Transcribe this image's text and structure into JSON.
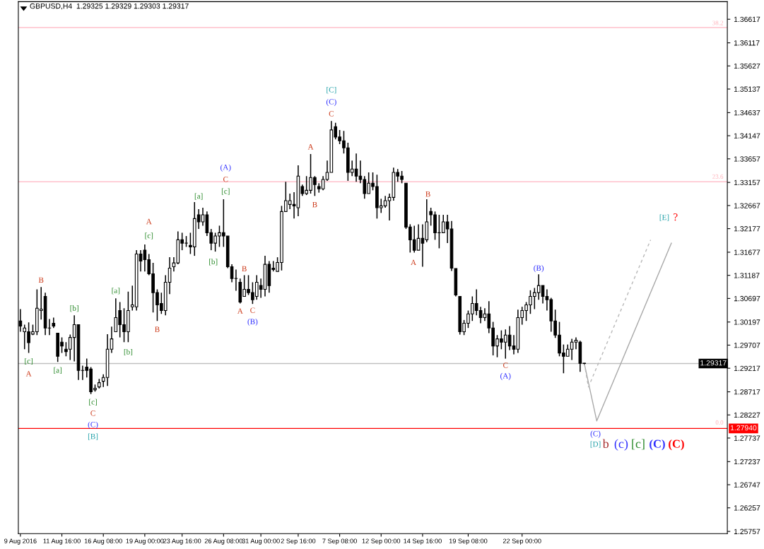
{
  "chart_data": {
    "type": "candlestick",
    "title": "GBPUSD,H4  1.29325 1.29329 1.29303 1.29317",
    "color": "#000000",
    "categories": [
      "9 Aug 2016",
      null,
      null,
      null,
      null,
      null,
      null,
      null,
      null,
      null,
      "11 Aug 16:00",
      null,
      null,
      null,
      null,
      null,
      null,
      null,
      null,
      null,
      "16 Aug 08:00",
      null,
      null,
      null,
      null,
      null,
      null,
      null,
      null,
      null,
      "19 Aug 00:00",
      null,
      null,
      null,
      null,
      null,
      null,
      null,
      null,
      "23 Aug 16:00",
      null,
      null,
      null,
      null,
      null,
      null,
      null,
      null,
      null,
      "26 Aug 08:00",
      null,
      null,
      null,
      null,
      null,
      null,
      null,
      null,
      "31 Aug 00:00",
      null,
      null,
      null,
      null,
      null,
      null,
      null,
      null,
      "2 Sep 16:00",
      null,
      null,
      null,
      null,
      null,
      null,
      null,
      null,
      null,
      "7 Sep 08:00",
      null,
      null,
      null,
      null,
      null,
      null,
      null,
      null,
      null,
      "12 Sep 00:00",
      null,
      null,
      null,
      null,
      null,
      null,
      null,
      null,
      null,
      "14 Sep 16:00",
      null,
      null,
      null,
      null,
      null,
      null,
      null,
      null,
      null,
      null,
      "19 Sep 08:00",
      null,
      null,
      null,
      null,
      null,
      null,
      null,
      null,
      null,
      null,
      null,
      null,
      "22 Sep 00:00",
      null,
      null,
      null,
      null,
      null,
      null,
      null,
      null,
      null,
      null,
      null,
      null,
      null,
      null,
      null,
      null,
      null,
      null,
      null,
      null,
      null,
      null,
      null,
      null,
      null,
      null,
      null,
      null,
      null,
      null,
      null,
      null,
      null,
      null,
      null,
      null,
      null,
      null,
      null,
      null,
      null,
      null,
      null,
      null,
      null,
      null,
      null,
      null,
      null
    ],
    "ohlc": [
      [
        1.3022,
        1.3047,
        1.2999,
        1.3011
      ],
      [
        1.2999,
        1.3014,
        1.2962,
        1.3007
      ],
      [
        1.2999,
        1.3019,
        1.2954,
        1.2976
      ],
      [
        1.2994,
        1.3014,
        1.2992,
        1.2999
      ],
      [
        1.2999,
        1.3089,
        1.2992,
        1.3049
      ],
      [
        1.3044,
        1.3094,
        1.3025,
        1.3047
      ],
      [
        1.3074,
        1.3082,
        1.2992,
        1.3007
      ],
      [
        1.3007,
        1.3026,
        1.2992,
        1.3007
      ],
      [
        1.3017,
        1.3029,
        1.3007,
        1.3011
      ],
      [
        1.2996,
        1.2996,
        1.2935,
        1.2947
      ],
      [
        1.2977,
        1.2987,
        1.2954,
        1.2969
      ],
      [
        1.2962,
        1.2977,
        1.2947,
        1.2957
      ],
      [
        1.2962,
        1.2993,
        1.2939,
        1.2987
      ],
      [
        1.2987,
        1.3034,
        1.2936,
        1.3014
      ],
      [
        1.3014,
        1.3014,
        1.2897,
        1.2917
      ],
      [
        1.2917,
        1.2927,
        1.2897,
        1.2917
      ],
      [
        1.2924,
        1.2942,
        1.2902,
        1.2917
      ],
      [
        1.292,
        1.2924,
        1.2867,
        1.2872
      ],
      [
        1.2876,
        1.2887,
        1.2872,
        1.2879
      ],
      [
        1.2882,
        1.2899,
        1.2879,
        1.2891
      ],
      [
        1.2894,
        1.2909,
        1.2882,
        1.2902
      ],
      [
        1.2902,
        1.2994,
        1.2884,
        1.2962
      ],
      [
        1.2962,
        1.301,
        1.2954,
        1.2984
      ],
      [
        1.2999,
        1.307,
        1.2999,
        1.3029
      ],
      [
        1.3044,
        1.3062,
        1.2987,
        1.3014
      ],
      [
        1.3014,
        1.3049,
        1.2977,
        1.2999
      ],
      [
        1.2999,
        1.3084,
        1.2977,
        1.3044
      ],
      [
        1.3052,
        1.3097,
        1.3044,
        1.3056
      ],
      [
        1.3052,
        1.3172,
        1.3044,
        1.3164
      ],
      [
        1.3164,
        1.3172,
        1.3127,
        1.3149
      ],
      [
        1.3172,
        1.3184,
        1.3127,
        1.3152
      ],
      [
        1.3152,
        1.3164,
        1.3119,
        1.3122
      ],
      [
        1.3122,
        1.3145,
        1.304,
        1.3082
      ],
      [
        1.3082,
        1.3089,
        1.3022,
        1.3056
      ],
      [
        1.3059,
        1.3082,
        1.3037,
        1.3044
      ],
      [
        1.3044,
        1.3119,
        1.3034,
        1.3104
      ],
      [
        1.3104,
        1.3157,
        1.3079,
        1.3134
      ],
      [
        1.3137,
        1.3157,
        1.3127,
        1.3145
      ],
      [
        1.3145,
        1.3212,
        1.3142,
        1.3194
      ],
      [
        1.3194,
        1.3209,
        1.3172,
        1.3187
      ],
      [
        1.3187,
        1.3202,
        1.3179,
        1.3187
      ],
      [
        1.3182,
        1.3209,
        1.3164,
        1.3179
      ],
      [
        1.3179,
        1.3274,
        1.316,
        1.3239
      ],
      [
        1.3247,
        1.3259,
        1.3217,
        1.3232
      ],
      [
        1.3232,
        1.3262,
        1.3224,
        1.3247
      ],
      [
        1.3247,
        1.3254,
        1.3202,
        1.3209
      ],
      [
        1.3209,
        1.3217,
        1.3172,
        1.3187
      ],
      [
        1.3187,
        1.3209,
        1.3169,
        1.3202
      ],
      [
        1.3202,
        1.3224,
        1.3179,
        1.3209
      ],
      [
        1.3209,
        1.328,
        1.3179,
        1.3202
      ],
      [
        1.3202,
        1.3202,
        1.3134,
        1.3137
      ],
      [
        1.3137,
        1.3142,
        1.3104,
        1.3112
      ],
      [
        1.3112,
        1.3131,
        1.3086,
        1.3112
      ],
      [
        1.3104,
        1.3112,
        1.3059,
        1.3062
      ],
      [
        1.3074,
        1.3119,
        1.3074,
        1.3089
      ],
      [
        1.3089,
        1.3119,
        1.3077,
        1.3082
      ],
      [
        1.3082,
        1.3104,
        1.3058,
        1.3067
      ],
      [
        1.3074,
        1.3119,
        1.3067,
        1.3104
      ],
      [
        1.3097,
        1.3112,
        1.3071,
        1.3089
      ],
      [
        1.3089,
        1.316,
        1.3074,
        1.3142
      ],
      [
        1.3142,
        1.3149,
        1.3082,
        1.3097
      ],
      [
        1.3134,
        1.3149,
        1.3127,
        1.3131
      ],
      [
        1.3127,
        1.3157,
        1.3127,
        1.3146
      ],
      [
        1.3146,
        1.3266,
        1.3129,
        1.3254
      ],
      [
        1.3254,
        1.3317,
        1.3254,
        1.3277
      ],
      [
        1.3269,
        1.3292,
        1.3259,
        1.3277
      ],
      [
        1.3269,
        1.3295,
        1.3239,
        1.3266
      ],
      [
        1.3262,
        1.3352,
        1.3244,
        1.3329
      ],
      [
        1.3307,
        1.3311,
        1.3287,
        1.3292
      ],
      [
        1.3292,
        1.3329,
        1.3289,
        1.3299
      ],
      [
        1.3299,
        1.3376,
        1.3292,
        1.3326
      ],
      [
        1.3326,
        1.3329,
        1.3287,
        1.3311
      ],
      [
        1.3307,
        1.3314,
        1.3294,
        1.3302
      ],
      [
        1.3302,
        1.3329,
        1.3299,
        1.3322
      ],
      [
        1.3322,
        1.3362,
        1.3319,
        1.3337
      ],
      [
        1.3337,
        1.3446,
        1.3337,
        1.3427
      ],
      [
        1.3434,
        1.3442,
        1.3407,
        1.3412
      ],
      [
        1.3412,
        1.3427,
        1.3397,
        1.3404
      ],
      [
        1.3404,
        1.3425,
        1.3377,
        1.3389
      ],
      [
        1.3389,
        1.34,
        1.3319,
        1.3337
      ],
      [
        1.3337,
        1.3362,
        1.3329,
        1.3344
      ],
      [
        1.3344,
        1.3377,
        1.3317,
        1.3329
      ],
      [
        1.3329,
        1.3362,
        1.3314,
        1.3322
      ],
      [
        1.3322,
        1.3329,
        1.3281,
        1.3292
      ],
      [
        1.3292,
        1.3337,
        1.3292,
        1.3314
      ],
      [
        1.3314,
        1.3337,
        1.3299,
        1.3307
      ],
      [
        1.3307,
        1.3332,
        1.3239,
        1.3262
      ],
      [
        1.3262,
        1.3281,
        1.3251,
        1.3266
      ],
      [
        1.3266,
        1.3287,
        1.3262,
        1.3277
      ],
      [
        1.3277,
        1.3292,
        1.3235,
        1.3284
      ],
      [
        1.3284,
        1.3347,
        1.3277,
        1.3337
      ],
      [
        1.3337,
        1.3344,
        1.3317,
        1.3329
      ],
      [
        1.3329,
        1.334,
        1.3314,
        1.3322
      ],
      [
        1.3314,
        1.3314,
        1.3217,
        1.3221
      ],
      [
        1.3221,
        1.3227,
        1.3167,
        1.3194
      ],
      [
        1.3194,
        1.3224,
        1.3167,
        1.3172
      ],
      [
        1.3172,
        1.3227,
        1.3172,
        1.3197
      ],
      [
        1.3197,
        1.3227,
        1.3137,
        1.3187
      ],
      [
        1.3194,
        1.328,
        1.3189,
        1.3232
      ],
      [
        1.3254,
        1.3262,
        1.3224,
        1.3247
      ],
      [
        1.3247,
        1.3254,
        1.3194,
        1.3209
      ],
      [
        1.3209,
        1.3247,
        1.3176,
        1.3209
      ],
      [
        1.3209,
        1.3247,
        1.3209,
        1.3232
      ],
      [
        1.3232,
        1.3247,
        1.3187,
        1.3217
      ],
      [
        1.3217,
        1.3234,
        1.3128,
        1.3134
      ],
      [
        1.3133,
        1.3133,
        1.3074,
        1.3077
      ],
      [
        1.3074,
        1.3074,
        1.2993,
        1.2999
      ],
      [
        1.2999,
        1.3024,
        1.2992,
        1.3017
      ],
      [
        1.3017,
        1.3044,
        1.3007,
        1.3037
      ],
      [
        1.3037,
        1.3074,
        1.3022,
        1.3059
      ],
      [
        1.3059,
        1.3089,
        1.3034,
        1.3044
      ],
      [
        1.3044,
        1.3052,
        1.3017,
        1.3029
      ],
      [
        1.3029,
        1.3049,
        1.3022,
        1.3037
      ],
      [
        1.3037,
        1.3064,
        1.2996,
        1.3007
      ],
      [
        1.3007,
        1.302,
        1.2949,
        1.2969
      ],
      [
        1.2969,
        1.2992,
        1.2945,
        1.2984
      ],
      [
        1.2984,
        1.3002,
        1.2962,
        1.2977
      ],
      [
        1.2977,
        1.3004,
        1.2942,
        1.2992
      ],
      [
        1.2992,
        1.3011,
        1.296,
        1.2969
      ],
      [
        1.2969,
        1.2992,
        1.2951,
        1.2962
      ],
      [
        1.2962,
        1.3046,
        1.2954,
        1.3029
      ],
      [
        1.3029,
        1.3052,
        1.3014,
        1.3044
      ],
      [
        1.3044,
        1.3062,
        1.3022,
        1.3056
      ],
      [
        1.3056,
        1.3087,
        1.3037,
        1.3074
      ],
      [
        1.3074,
        1.3092,
        1.3047,
        1.3082
      ],
      [
        1.3082,
        1.3121,
        1.3067,
        1.3097
      ],
      [
        1.3097,
        1.3097,
        1.3059,
        1.3074
      ],
      [
        1.3074,
        1.3089,
        1.3044,
        1.3067
      ],
      [
        1.3067,
        1.3071,
        1.2999,
        1.3022
      ],
      [
        1.3022,
        1.3046,
        1.2986,
        1.2992
      ],
      [
        1.2992,
        1.302,
        1.2947,
        1.2954
      ],
      [
        1.2954,
        1.2972,
        1.2911,
        1.2947
      ],
      [
        1.2947,
        1.2972,
        1.2947,
        1.2962
      ],
      [
        1.2962,
        1.2984,
        1.2939,
        1.2977
      ],
      [
        1.2977,
        1.2987,
        1.2962,
        1.2981
      ],
      [
        1.2977,
        1.298,
        1.2914,
        1.2932
      ],
      [
        1.29325,
        1.29329,
        1.29303,
        1.29317
      ],
      null,
      null,
      null,
      null,
      null,
      null,
      null,
      null,
      null,
      null,
      null,
      null,
      null,
      null,
      null,
      null,
      null,
      null,
      null,
      null,
      null,
      null,
      null,
      null,
      null,
      null,
      null,
      null,
      null,
      null,
      null,
      null,
      null,
      null
    ],
    "series": [
      {
        "type": "line",
        "color": "#a8a8a8",
        "line_style": "solid",
        "values": [
          null,
          null,
          null,
          null,
          null,
          null,
          null,
          null,
          null,
          null,
          null,
          null,
          null,
          null,
          null,
          null,
          null,
          null,
          null,
          null,
          null,
          null,
          null,
          null,
          null,
          null,
          null,
          null,
          null,
          null,
          null,
          null,
          null,
          null,
          null,
          null,
          null,
          null,
          null,
          null,
          null,
          null,
          null,
          null,
          null,
          null,
          null,
          null,
          null,
          null,
          null,
          null,
          null,
          null,
          null,
          null,
          null,
          null,
          null,
          null,
          null,
          null,
          null,
          null,
          null,
          null,
          null,
          null,
          null,
          null,
          null,
          null,
          null,
          null,
          null,
          null,
          null,
          null,
          null,
          null,
          null,
          null,
          null,
          null,
          null,
          null,
          null,
          null,
          null,
          null,
          null,
          null,
          null,
          null,
          null,
          null,
          null,
          null,
          null,
          null,
          null,
          null,
          null,
          null,
          null,
          null,
          null,
          null,
          null,
          null,
          null,
          null,
          null,
          null,
          null,
          null,
          null,
          null,
          null,
          null,
          null,
          null,
          null,
          null,
          null,
          null,
          null,
          null,
          null,
          null,
          null,
          null,
          null,
          null,
          null,
          null,
          1.2932,
          null,
          null,
          1.281,
          null,
          null,
          null,
          null,
          null,
          null,
          null,
          null,
          null,
          null,
          null,
          null,
          null,
          null,
          null,
          null,
          null,
          1.3187,
          null,
          null,
          null,
          null,
          null,
          null,
          null,
          null,
          null,
          null,
          null,
          null,
          null
        ]
      },
      {
        "type": "line",
        "color": "#b8b8b8",
        "line_style": "dashed",
        "values": [
          null,
          null,
          null,
          null,
          null,
          null,
          null,
          null,
          null,
          null,
          null,
          null,
          null,
          null,
          null,
          null,
          null,
          null,
          null,
          null,
          null,
          null,
          null,
          null,
          null,
          null,
          null,
          null,
          null,
          null,
          null,
          null,
          null,
          null,
          null,
          null,
          null,
          null,
          null,
          null,
          null,
          null,
          null,
          null,
          null,
          null,
          null,
          null,
          null,
          null,
          null,
          null,
          null,
          null,
          null,
          null,
          null,
          null,
          null,
          null,
          null,
          null,
          null,
          null,
          null,
          null,
          null,
          null,
          null,
          null,
          null,
          null,
          null,
          null,
          null,
          null,
          null,
          null,
          null,
          null,
          null,
          null,
          null,
          null,
          null,
          null,
          null,
          null,
          null,
          null,
          null,
          null,
          null,
          null,
          null,
          null,
          null,
          null,
          null,
          null,
          null,
          null,
          null,
          null,
          null,
          null,
          null,
          null,
          null,
          null,
          null,
          null,
          null,
          null,
          null,
          null,
          null,
          null,
          null,
          null,
          null,
          null,
          null,
          null,
          null,
          null,
          null,
          null,
          null,
          null,
          null,
          null,
          null,
          null,
          null,
          null,
          1.2932,
          1.2882,
          null,
          null,
          null,
          null,
          null,
          null,
          null,
          null,
          null,
          null,
          null,
          null,
          null,
          null,
          1.3194,
          null,
          null,
          null,
          null,
          null,
          null,
          null,
          null,
          null,
          null,
          null,
          null,
          null,
          null,
          null,
          null,
          null,
          null
        ]
      }
    ],
    "ylim": [
      1.2571,
      1.3699
    ],
    "yticks": [
      1.36617,
      1.36117,
      1.35627,
      1.35137,
      1.34637,
      1.34147,
      1.33657,
      1.33157,
      1.32667,
      1.32177,
      1.31677,
      1.31187,
      1.30697,
      1.30197,
      1.29707,
      1.29217,
      1.28717,
      1.28227,
      1.27737,
      1.27237,
      1.26747,
      1.26257,
      1.25757
    ],
    "ref_lines": [
      {
        "axis": "y",
        "value": 1.3644,
        "color": "#ffc0cb"
      },
      {
        "axis": "y",
        "value": 1.3317,
        "color": "#ffc0cb"
      },
      {
        "axis": "y",
        "value": 1.29317,
        "label": "1.29317",
        "color": "#c0c0c0"
      },
      {
        "axis": "y",
        "value": 1.2794,
        "label": "1.27940",
        "color": "#ff0000"
      }
    ],
    "annotations": [
      "[c]",
      "A",
      "B",
      "[a]",
      "[b]",
      "[c]",
      "C",
      "(C)",
      "[B]",
      "[a]",
      "[b]",
      "A",
      "[c]",
      "B",
      "[a]",
      "[b]",
      "(A)",
      "C",
      "[c]",
      "B",
      "A",
      "C",
      "(B)",
      "A",
      "B",
      "[C]",
      "(C)",
      "C",
      "A",
      "B",
      "C",
      "(A)",
      "(B)",
      "[E]",
      "?",
      "(C)",
      "[D]",
      "b",
      "(c)",
      "[c]",
      "(C)",
      "(C)",
      "38.2",
      "23.6",
      "0.0"
    ],
    "grid": false,
    "legend": false
  }
}
